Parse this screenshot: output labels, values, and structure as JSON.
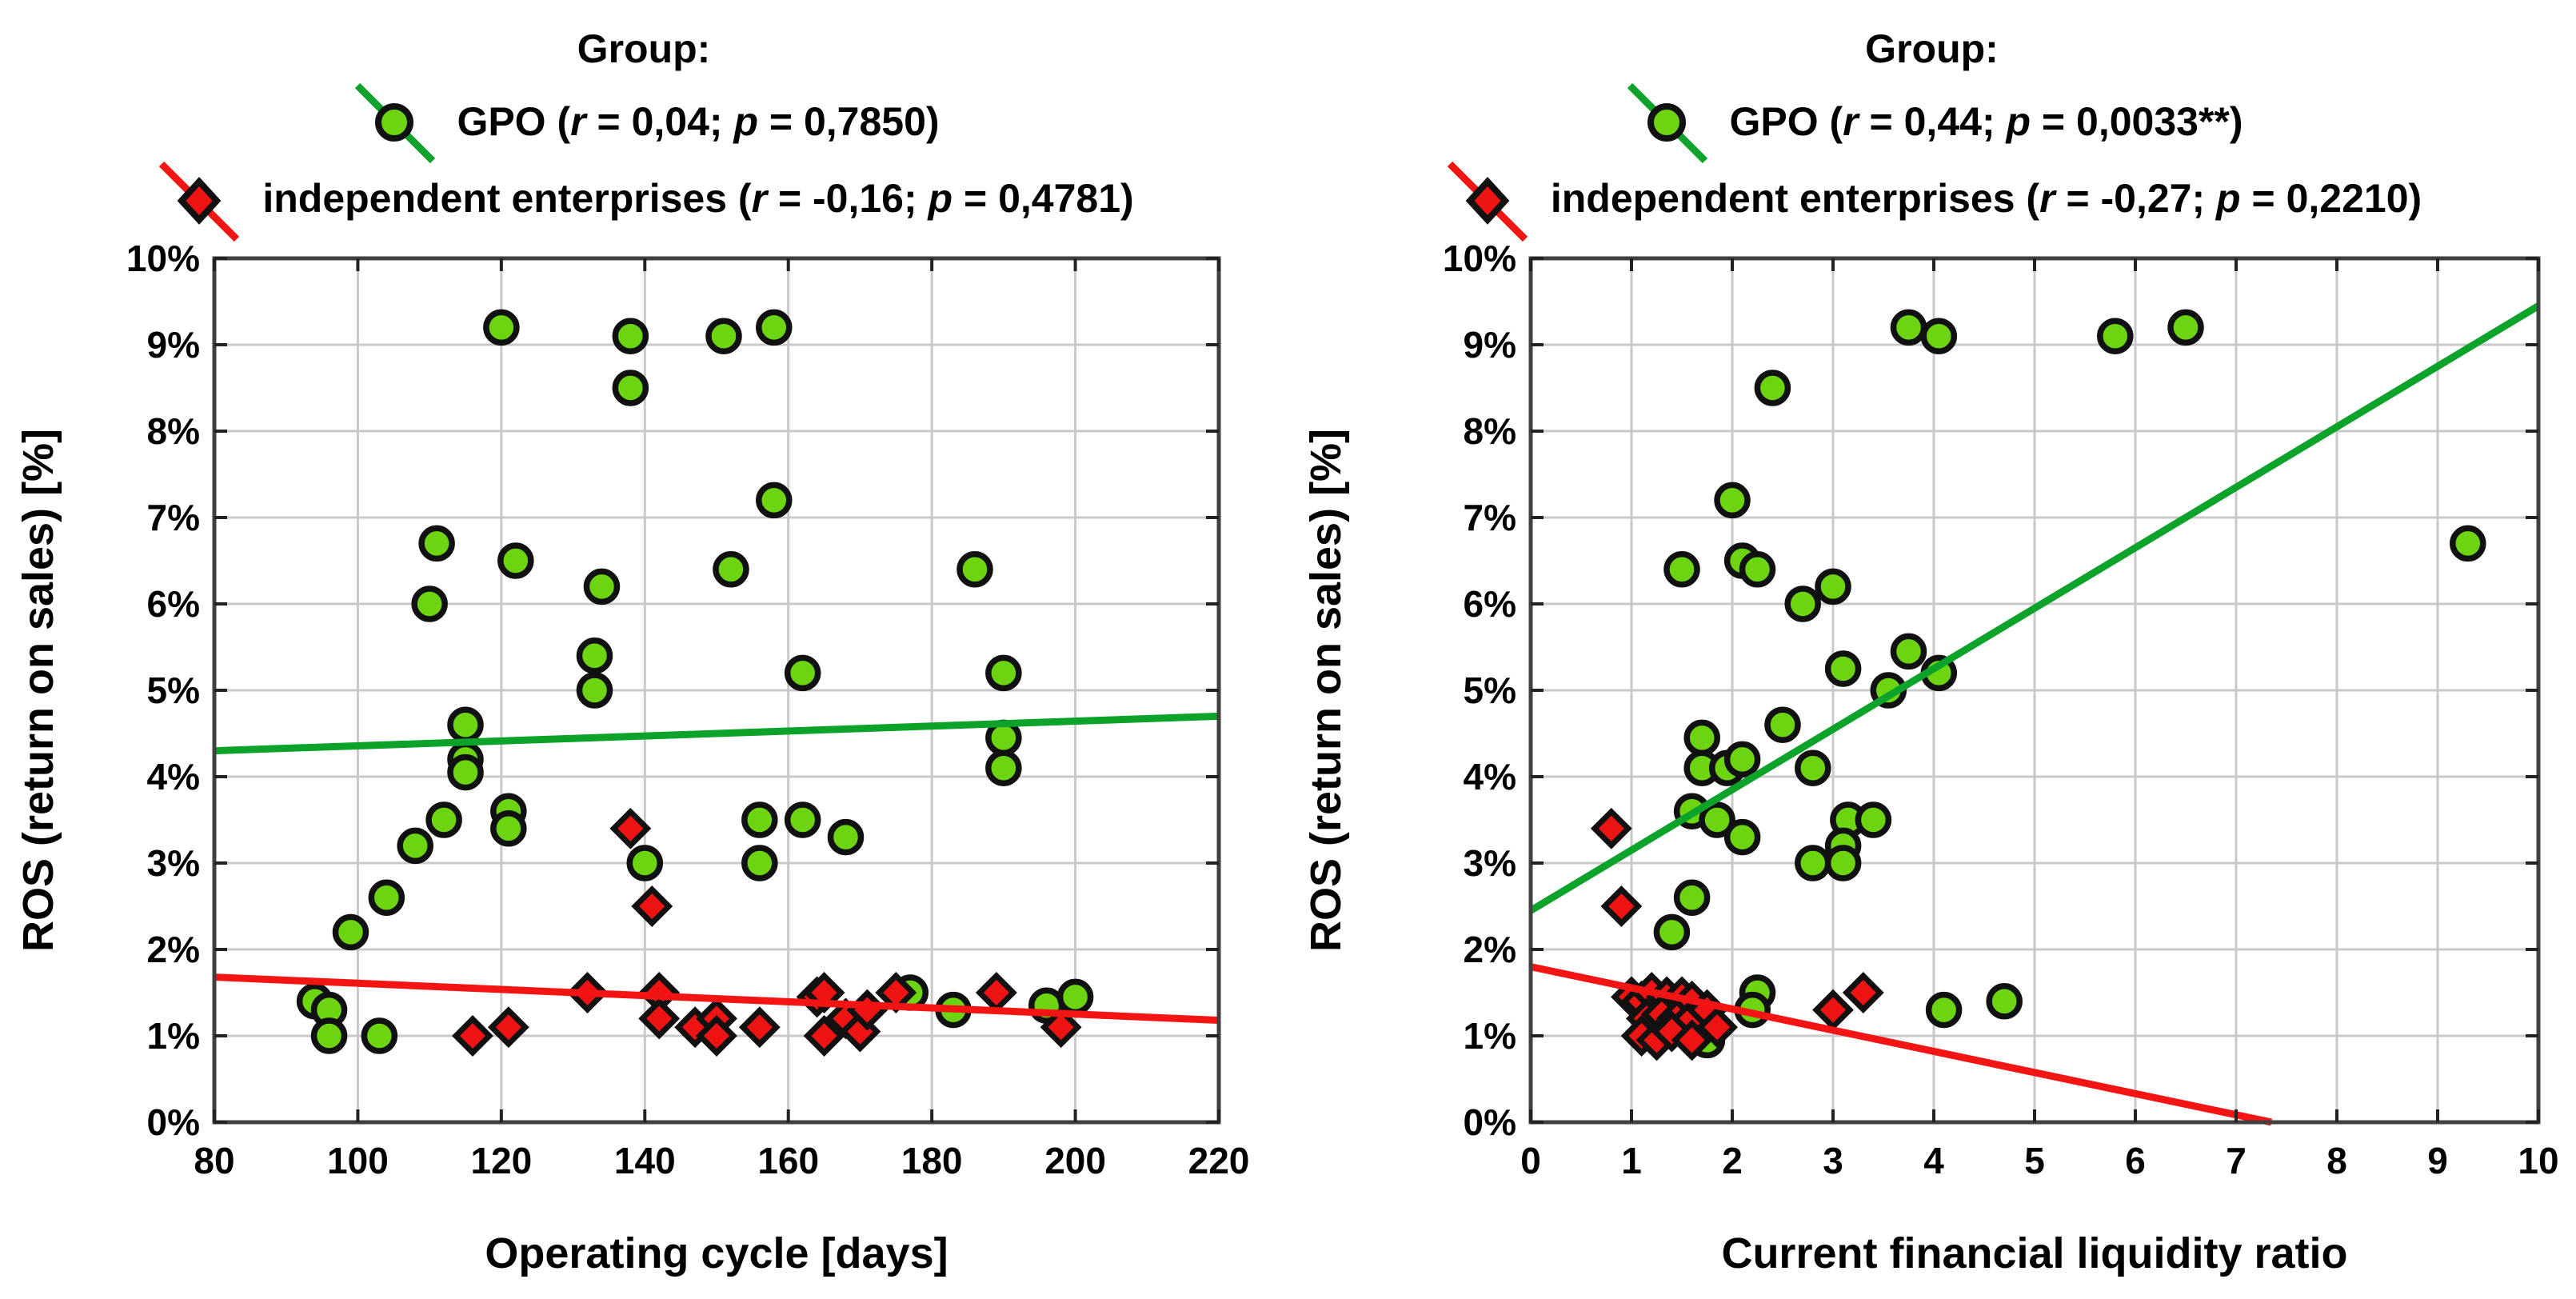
{
  "page": {
    "background": "#ffffff"
  },
  "colors": {
    "gpo_fill": "#6cd411",
    "gpo_trend": "#0da32b",
    "independent_fill": "#ee1414",
    "independent_trend": "#f31414",
    "marker_outline": "#111111",
    "grid": "#c9c9c9",
    "plot_border": "#404040",
    "text": "#000000"
  },
  "chart_data": [
    {
      "type": "scatter",
      "legend": {
        "title": "Group:",
        "entries": [
          {
            "marker": "gpo",
            "pre": "GPO (",
            "r_sym": "r",
            "r_rest": " = 0,04; ",
            "p_sym": "p",
            "p_rest": " = 0,7850)"
          },
          {
            "marker": "independent",
            "pre": "independent enterprises (",
            "r_sym": "r",
            "r_rest": " = -0,16; ",
            "p_sym": "p",
            "p_rest": " = 0,4781)"
          }
        ]
      },
      "xlabel": "Operating cycle [days]",
      "ylabel": "ROS (return on sales) [%]",
      "x_axis": {
        "min": 80,
        "max": 220,
        "ticks": [
          80,
          100,
          120,
          140,
          160,
          180,
          200,
          220
        ],
        "tick_labels": [
          "80",
          "100",
          "120",
          "140",
          "160",
          "180",
          "200",
          "220"
        ]
      },
      "y_axis": {
        "min": 0,
        "max": 10,
        "ticks": [
          0,
          1,
          2,
          3,
          4,
          5,
          6,
          7,
          8,
          9,
          10
        ],
        "tick_labels": [
          "0%",
          "1%",
          "2%",
          "3%",
          "4%",
          "5%",
          "6%",
          "7%",
          "8%",
          "9%",
          "10%"
        ]
      },
      "grid": true,
      "legend_position": "top",
      "series": [
        {
          "name": "GPO",
          "marker": "circle",
          "points": [
            [
              120,
              9.2
            ],
            [
              138,
              9.1
            ],
            [
              151,
              9.1
            ],
            [
              158,
              9.2
            ],
            [
              138,
              8.5
            ],
            [
              158,
              7.2
            ],
            [
              111,
              6.7
            ],
            [
              122,
              6.5
            ],
            [
              134,
              6.2
            ],
            [
              110,
              6.0
            ],
            [
              152,
              6.4
            ],
            [
              186,
              6.4
            ],
            [
              133,
              5.4
            ],
            [
              162,
              5.2
            ],
            [
              190,
              5.2
            ],
            [
              133,
              5.0
            ],
            [
              115,
              4.6
            ],
            [
              115,
              4.2
            ],
            [
              115,
              4.05
            ],
            [
              190,
              4.45
            ],
            [
              190,
              4.1
            ],
            [
              121,
              3.6
            ],
            [
              112,
              3.5
            ],
            [
              156,
              3.5
            ],
            [
              162,
              3.5
            ],
            [
              121,
              3.4
            ],
            [
              168,
              3.3
            ],
            [
              108,
              3.2
            ],
            [
              140,
              3.0
            ],
            [
              156,
              3.0
            ],
            [
              104,
              2.6
            ],
            [
              99,
              2.2
            ],
            [
              94,
              1.4
            ],
            [
              96,
              1.3
            ],
            [
              96,
              1.0
            ],
            [
              103,
              1.0
            ],
            [
              177,
              1.5
            ],
            [
              183,
              1.3
            ],
            [
              196,
              1.35
            ],
            [
              200,
              1.45
            ]
          ]
        },
        {
          "name": "independent enterprises",
          "marker": "diamond",
          "points": [
            [
              138,
              3.4
            ],
            [
              141,
              2.5
            ],
            [
              132,
              1.5
            ],
            [
              142,
              1.5
            ],
            [
              142,
              1.2
            ],
            [
              147,
              1.1
            ],
            [
              150,
              1.2
            ],
            [
              150,
              1.0
            ],
            [
              156,
              1.1
            ],
            [
              116,
              1.0
            ],
            [
              121,
              1.1
            ],
            [
              164,
              1.45
            ],
            [
              165,
              1.5
            ],
            [
              165,
              1.0
            ],
            [
              168,
              1.2
            ],
            [
              170,
              1.05
            ],
            [
              171,
              1.3
            ],
            [
              175,
              1.5
            ],
            [
              189,
              1.5
            ],
            [
              198,
              1.1
            ]
          ]
        }
      ],
      "trend_lines": [
        {
          "series": "GPO",
          "x1": 80,
          "y1": 4.3,
          "x2": 220,
          "y2": 4.7
        },
        {
          "series": "independent enterprises",
          "x1": 80,
          "y1": 1.68,
          "x2": 220,
          "y2": 1.18
        }
      ]
    },
    {
      "type": "scatter",
      "legend": {
        "title": "Group:",
        "entries": [
          {
            "marker": "gpo",
            "pre": "GPO (",
            "r_sym": "r",
            "r_rest": " = 0,44; ",
            "p_sym": "p",
            "p_rest": " = 0,0033**)"
          },
          {
            "marker": "independent",
            "pre": "independent enterprises (",
            "r_sym": "r",
            "r_rest": " = -0,27; ",
            "p_sym": "p",
            "p_rest": " = 0,2210)"
          }
        ]
      },
      "xlabel": "Current financial liquidity ratio",
      "ylabel": "ROS (return on sales) [%]",
      "x_axis": {
        "min": 0,
        "max": 10,
        "ticks": [
          0,
          1,
          2,
          3,
          4,
          5,
          6,
          7,
          8,
          9,
          10
        ],
        "tick_labels": [
          "0",
          "1",
          "2",
          "3",
          "4",
          "5",
          "6",
          "7",
          "8",
          "9",
          "10"
        ]
      },
      "y_axis": {
        "min": 0,
        "max": 10,
        "ticks": [
          0,
          1,
          2,
          3,
          4,
          5,
          6,
          7,
          8,
          9,
          10
        ],
        "tick_labels": [
          "0%",
          "1%",
          "2%",
          "3%",
          "4%",
          "5%",
          "6%",
          "7%",
          "8%",
          "9%",
          "10%"
        ]
      },
      "grid": true,
      "legend_position": "top",
      "series": [
        {
          "name": "GPO",
          "marker": "circle",
          "points": [
            [
              3.75,
              9.2
            ],
            [
              4.05,
              9.1
            ],
            [
              5.8,
              9.1
            ],
            [
              6.5,
              9.2
            ],
            [
              2.4,
              8.5
            ],
            [
              2.0,
              7.2
            ],
            [
              9.3,
              6.7
            ],
            [
              1.5,
              6.4
            ],
            [
              2.1,
              6.5
            ],
            [
              2.25,
              6.4
            ],
            [
              2.7,
              6.0
            ],
            [
              3.0,
              6.2
            ],
            [
              3.1,
              5.25
            ],
            [
              3.75,
              5.45
            ],
            [
              4.05,
              5.2
            ],
            [
              3.55,
              5.0
            ],
            [
              2.5,
              4.6
            ],
            [
              1.7,
              4.45
            ],
            [
              1.7,
              4.1
            ],
            [
              1.95,
              4.1
            ],
            [
              2.1,
              4.2
            ],
            [
              2.8,
              4.1
            ],
            [
              1.6,
              3.6
            ],
            [
              1.85,
              3.5
            ],
            [
              2.1,
              3.3
            ],
            [
              3.15,
              3.5
            ],
            [
              3.4,
              3.5
            ],
            [
              3.1,
              3.2
            ],
            [
              2.8,
              3.0
            ],
            [
              3.1,
              3.0
            ],
            [
              1.6,
              2.6
            ],
            [
              1.4,
              2.2
            ],
            [
              2.25,
              1.5
            ],
            [
              2.2,
              1.3
            ],
            [
              4.1,
              1.3
            ],
            [
              4.7,
              1.4
            ],
            [
              1.75,
              0.95
            ],
            [
              1.5,
              1.35
            ]
          ]
        },
        {
          "name": "independent enterprises",
          "marker": "diamond",
          "points": [
            [
              0.8,
              3.4
            ],
            [
              0.9,
              2.5
            ],
            [
              3.3,
              1.5
            ],
            [
              3.0,
              1.3
            ],
            [
              1.0,
              1.45
            ],
            [
              1.1,
              1.4
            ],
            [
              1.2,
              1.5
            ],
            [
              1.35,
              1.45
            ],
            [
              1.5,
              1.45
            ],
            [
              1.6,
              1.4
            ],
            [
              1.15,
              1.2
            ],
            [
              1.3,
              1.25
            ],
            [
              1.45,
              1.2
            ],
            [
              1.6,
              1.2
            ],
            [
              1.75,
              1.3
            ],
            [
              1.1,
              1.0
            ],
            [
              1.25,
              0.95
            ],
            [
              1.4,
              1.05
            ],
            [
              1.6,
              0.95
            ],
            [
              1.85,
              1.1
            ]
          ]
        }
      ],
      "trend_lines": [
        {
          "series": "GPO",
          "x1": 0,
          "y1": 2.45,
          "x2": 10,
          "y2": 9.45
        },
        {
          "series": "independent enterprises",
          "x1": 0,
          "y1": 1.8,
          "x2": 7.35,
          "y2": 0
        }
      ]
    }
  ]
}
